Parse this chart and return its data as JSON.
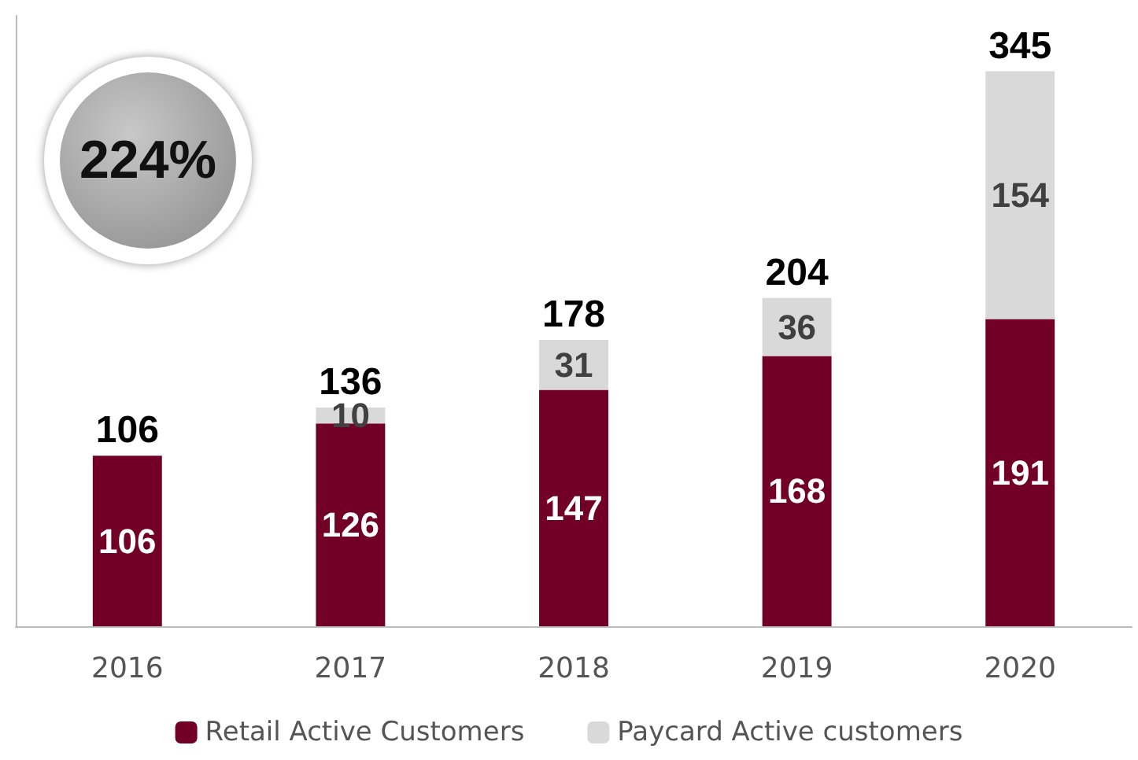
{
  "chart_data": {
    "type": "bar",
    "stacked": true,
    "data_labels": true,
    "legend": "bottom",
    "grid": false,
    "categories": [
      "2016",
      "2017",
      "2018",
      "2019",
      "2020"
    ],
    "series": [
      {
        "name": "Retail Active Customers",
        "color": "#720026",
        "values": [
          106,
          126,
          147,
          168,
          191
        ]
      },
      {
        "name": "Paycard Active customers",
        "color": "#d9d9d9",
        "values": [
          null,
          10,
          31,
          36,
          154
        ]
      }
    ],
    "totals": [
      "106",
      "136",
      "178",
      "204",
      "345"
    ],
    "annotations": [
      "224%"
    ]
  }
}
